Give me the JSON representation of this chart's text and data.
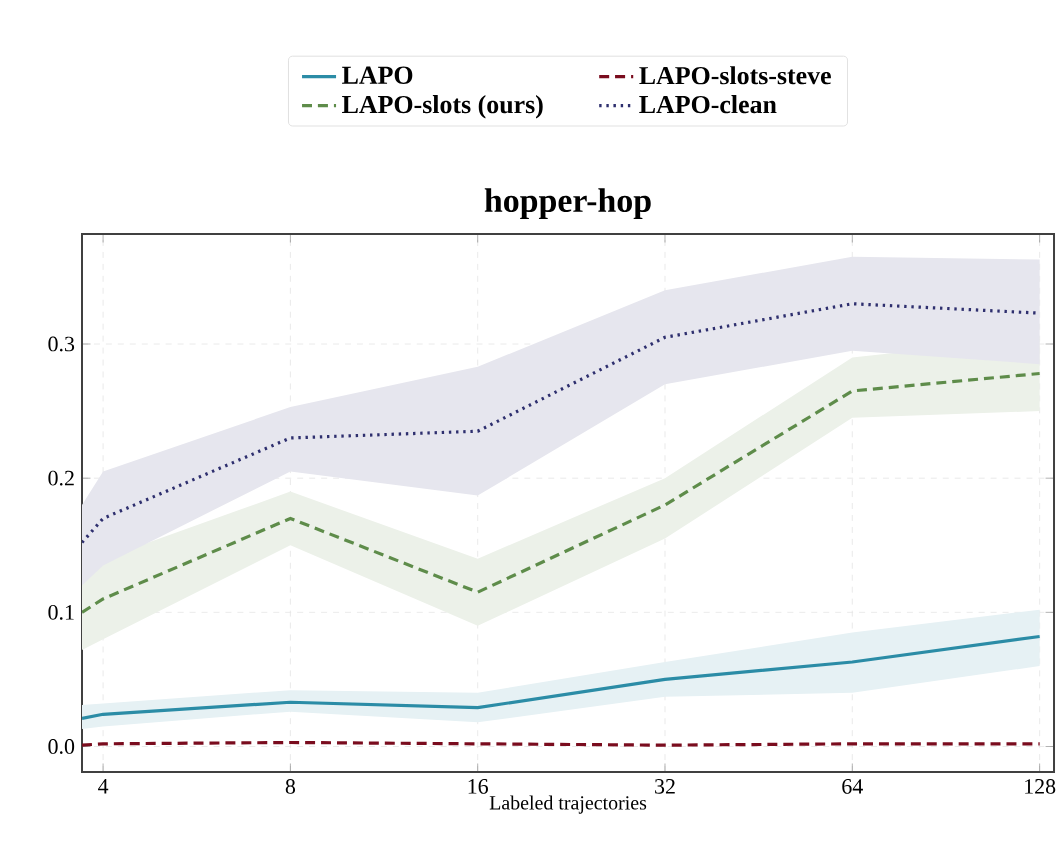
{
  "chart_data": {
    "type": "line",
    "title": "hopper-hop",
    "xlabel": "Labeled trajectories",
    "x": [
      3.7,
      4,
      8,
      16,
      32,
      64,
      128
    ],
    "series": [
      {
        "name": "LAPO",
        "color": "#2b8ca6",
        "line_style": "solid",
        "values": [
          0.021,
          0.024,
          0.033,
          0.029,
          0.05,
          0.063,
          0.082
        ],
        "lower": [
          0.013,
          0.015,
          0.026,
          0.018,
          0.037,
          0.04,
          0.06
        ],
        "upper": [
          0.031,
          0.032,
          0.042,
          0.04,
          0.063,
          0.085,
          0.102
        ]
      },
      {
        "name": "**LAPO-slots** (ours)",
        "color": "#5e8c4a",
        "line_style": "dashed",
        "values": [
          0.1,
          0.11,
          0.17,
          0.115,
          0.18,
          0.265,
          0.278
        ],
        "lower": [
          0.072,
          0.08,
          0.15,
          0.09,
          0.155,
          0.245,
          0.25
        ],
        "upper": [
          0.125,
          0.14,
          0.19,
          0.14,
          0.2,
          0.29,
          0.305
        ]
      },
      {
        "name": "LAPO-slots-steve",
        "color": "#7a0c1e",
        "line_style": "dashed",
        "values": [
          0.001,
          0.002,
          0.003,
          0.002,
          0.001,
          0.002,
          0.002
        ]
      },
      {
        "name": "LAPO-clean",
        "color": "#2e2f6e",
        "line_style": "dotted",
        "values": [
          0.152,
          0.17,
          0.23,
          0.235,
          0.305,
          0.33,
          0.323
        ],
        "lower": [
          0.12,
          0.135,
          0.205,
          0.187,
          0.27,
          0.295,
          0.285
        ],
        "upper": [
          0.18,
          0.205,
          0.253,
          0.283,
          0.34,
          0.365,
          0.363
        ]
      }
    ],
    "xlim": [
      3.7,
      135
    ],
    "ylim": [
      -0.019,
      0.382
    ],
    "xticks": [
      4,
      8,
      16,
      32,
      64,
      128
    ],
    "yticks": [
      {
        "value": 0,
        "label": "0.0"
      },
      0.1,
      0.2,
      0.3
    ],
    "log": "x",
    "grid": true,
    "legend": "top"
  }
}
